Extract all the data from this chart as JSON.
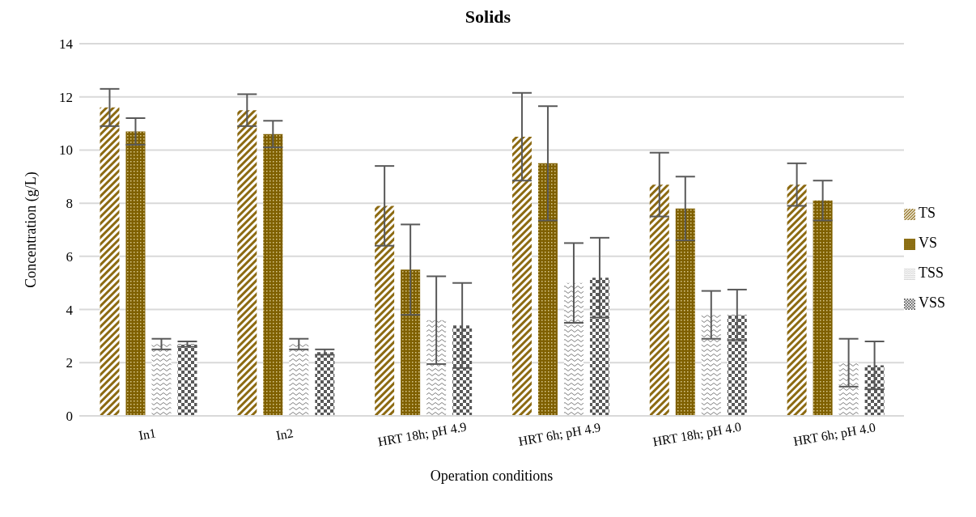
{
  "chart_data": {
    "type": "bar",
    "title": "Solids",
    "xlabel": "Operation conditions",
    "ylabel": "Concentration (g/L)",
    "categories": [
      "In1",
      "In2",
      "HRT 18h; pH 4.9",
      "HRT 6h; pH 4.9",
      "HRT 18h; pH 4.0",
      "HRT 6h; pH 4.0"
    ],
    "series": [
      {
        "name": "TS",
        "color": "#8c6a12",
        "values": [
          11.6,
          11.5,
          7.9,
          10.5,
          8.7,
          8.7
        ],
        "errors": [
          0.7,
          0.6,
          1.5,
          1.65,
          1.2,
          0.8
        ]
      },
      {
        "name": "VS",
        "color": "#7f6000",
        "values": [
          10.7,
          10.6,
          5.5,
          9.5,
          7.8,
          8.1
        ],
        "errors": [
          0.5,
          0.5,
          1.7,
          2.15,
          1.2,
          0.75
        ]
      },
      {
        "name": "TSS",
        "color": "#7f7f7f",
        "values": [
          2.7,
          2.7,
          3.6,
          5.0,
          3.8,
          2.0
        ],
        "errors": [
          0.2,
          0.2,
          1.65,
          1.5,
          0.9,
          0.9
        ]
      },
      {
        "name": "VSS",
        "color": "#595959",
        "values": [
          2.7,
          2.4,
          3.4,
          5.2,
          3.8,
          1.9
        ],
        "errors": [
          0.1,
          0.1,
          1.6,
          1.5,
          0.95,
          0.9
        ]
      }
    ],
    "ylim": [
      0,
      14
    ],
    "yticks": [
      0,
      2,
      4,
      6,
      8,
      10,
      12,
      14
    ],
    "grid": "y",
    "legend": "right"
  }
}
